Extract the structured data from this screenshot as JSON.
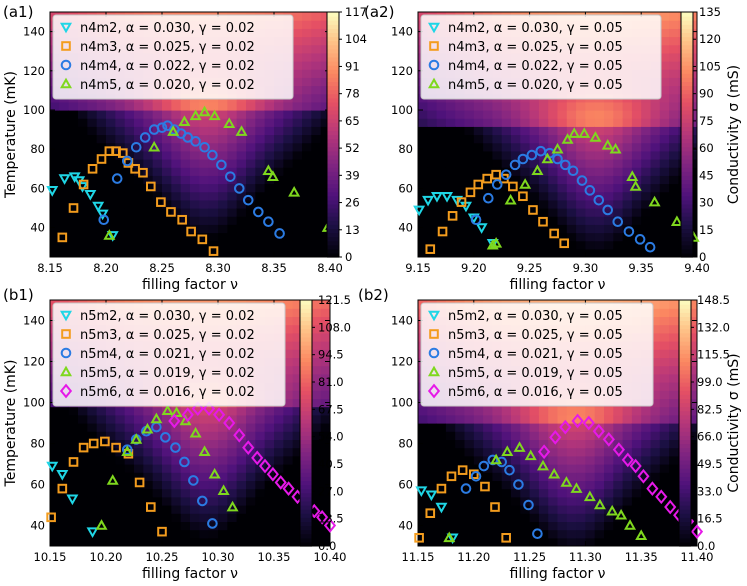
{
  "chart_data": [
    {
      "panel_label": "(a1)",
      "type": "scatter",
      "background": "heatmap",
      "xlabel": "filling factor ν",
      "ylabel": "Temperature (mK)",
      "xlim": [
        8.15,
        8.4
      ],
      "ylim": [
        25,
        150
      ],
      "xticks": [
        "8.15",
        "8.20",
        "8.25",
        "8.30",
        "8.35",
        "8.40"
      ],
      "yticks": [
        "40",
        "60",
        "80",
        "100",
        "120",
        "140"
      ],
      "heat_peak": {
        "x": 8.29,
        "y": 100
      },
      "colorbar": {
        "label": "",
        "min": 0,
        "max": 117,
        "ticks": [
          "0",
          "13",
          "26",
          "39",
          "52",
          "65",
          "78",
          "91",
          "104",
          "117"
        ]
      },
      "series": [
        {
          "name": "n4m2, α = 0.030, γ = 0.02",
          "marker": "triangle-down",
          "color": "#1fd6e6",
          "x": [
            8.152,
            8.163,
            8.172,
            8.176,
            8.179,
            8.186,
            8.193,
            8.197,
            8.206
          ],
          "y": [
            59,
            65,
            66,
            64,
            61,
            57,
            51,
            47,
            36
          ]
        },
        {
          "name": "n4m3, α = 0.025, γ = 0.02",
          "marker": "square",
          "color": "#f39c1e",
          "x": [
            8.161,
            8.171,
            8.18,
            8.188,
            8.196,
            8.203,
            8.209,
            8.215,
            8.22,
            8.226,
            8.233,
            8.24,
            8.249,
            8.258,
            8.268,
            8.276,
            8.286,
            8.296
          ],
          "y": [
            35,
            50,
            62,
            70,
            75,
            79,
            79,
            78,
            73,
            70,
            68,
            61,
            53,
            48,
            44,
            38,
            34,
            28
          ]
        },
        {
          "name": "n4m4, α = 0.022, γ = 0.02",
          "marker": "circle",
          "color": "#2b7be3",
          "x": [
            8.198,
            8.21,
            8.219,
            8.227,
            8.235,
            8.243,
            8.25,
            8.255,
            8.261,
            8.267,
            8.273,
            8.28,
            8.288,
            8.295,
            8.303,
            8.311,
            8.319,
            8.327,
            8.336,
            8.345,
            8.355
          ],
          "y": [
            44,
            65,
            74,
            81,
            86,
            90,
            91,
            92,
            90,
            88,
            86,
            84,
            81,
            77,
            72,
            66,
            60,
            54,
            48,
            43,
            37
          ]
        },
        {
          "name": "n4m5, α = 0.020, γ = 0.02",
          "marker": "triangle-up",
          "color": "#7fd81e",
          "x": [
            8.203,
            8.243,
            8.26,
            8.27,
            8.28,
            8.288,
            8.297,
            8.31,
            8.321,
            8.345,
            8.349,
            8.368,
            8.398
          ],
          "y": [
            36,
            81,
            89,
            94,
            97,
            99,
            97,
            93,
            89,
            69,
            66,
            58,
            40
          ]
        }
      ]
    },
    {
      "panel_label": "(a2)",
      "type": "scatter",
      "background": "heatmap",
      "xlabel": "filling factor ν",
      "ylabel": "",
      "xlim": [
        9.15,
        9.4
      ],
      "ylim": [
        25,
        150
      ],
      "xticks": [
        "9.15",
        "9.20",
        "9.25",
        "9.30",
        "9.35",
        "9.40"
      ],
      "yticks": [
        "40",
        "60",
        "80",
        "100",
        "120",
        "140"
      ],
      "heat_peak": {
        "x": 9.31,
        "y": 93
      },
      "colorbar": {
        "label": "Conductivity σ (mS)",
        "min": 0,
        "max": 135,
        "ticks": [
          "0",
          "15",
          "30",
          "45",
          "60",
          "75",
          "90",
          "105",
          "120",
          "135"
        ]
      },
      "series": [
        {
          "name": "n4m2, α = 0.030, γ = 0.05",
          "marker": "triangle-down",
          "color": "#1fd6e6",
          "x": [
            9.151,
            9.159,
            9.167,
            9.176,
            9.185,
            9.193,
            9.2,
            9.207,
            9.217
          ],
          "y": [
            49,
            54,
            56,
            56,
            54,
            51,
            45,
            40,
            32
          ]
        },
        {
          "name": "n4m3, α = 0.025, γ = 0.05",
          "marker": "square",
          "color": "#f39c1e",
          "x": [
            9.161,
            9.172,
            9.181,
            9.189,
            9.197,
            9.204,
            9.212,
            9.22,
            9.227,
            9.235,
            9.244,
            9.253,
            9.262,
            9.272,
            9.281
          ],
          "y": [
            29,
            38,
            46,
            53,
            58,
            62,
            65,
            67,
            65,
            61,
            56,
            49,
            43,
            37,
            32
          ]
        },
        {
          "name": "n4m4, α = 0.022, γ = 0.05",
          "marker": "circle",
          "color": "#2b7be3",
          "x": [
            9.202,
            9.213,
            9.221,
            9.229,
            9.237,
            9.244,
            9.252,
            9.26,
            9.268,
            9.275,
            9.282,
            9.289,
            9.297,
            9.304,
            9.312,
            9.32,
            9.329,
            9.339,
            9.349,
            9.358
          ],
          "y": [
            44,
            55,
            62,
            67,
            72,
            75,
            77,
            79,
            78,
            75,
            72,
            69,
            64,
            59,
            54,
            49,
            43,
            38,
            34,
            30
          ]
        },
        {
          "name": "n4m5, α = 0.020, γ = 0.05",
          "marker": "triangle-up",
          "color": "#7fd81e",
          "x": [
            9.217,
            9.22,
            9.233,
            9.246,
            9.257,
            9.266,
            9.275,
            9.284,
            9.29,
            9.299,
            9.309,
            9.32,
            9.327,
            9.342,
            9.345,
            9.362,
            9.382,
            9.397
          ],
          "y": [
            31,
            32,
            54,
            62,
            69,
            75,
            80,
            85,
            88,
            88,
            86,
            82,
            80,
            66,
            61,
            53,
            43,
            35
          ]
        }
      ]
    },
    {
      "panel_label": "(b1)",
      "type": "scatter",
      "background": "heatmap",
      "xlabel": "filling factor ν",
      "ylabel": "Temperature (mK)",
      "xlim": [
        10.15,
        10.4
      ],
      "ylim": [
        30,
        150
      ],
      "xticks": [
        "10.15",
        "10.20",
        "10.25",
        "10.30",
        "10.35",
        "10.40"
      ],
      "yticks": [
        "40",
        "60",
        "80",
        "100",
        "120",
        "140"
      ],
      "heat_peak": {
        "x": 10.29,
        "y": 97
      },
      "colorbar": {
        "label": "",
        "min": 0,
        "max": 121.5,
        "ticks": [
          "0.0",
          "13.5",
          "27.0",
          "40.5",
          "54.0",
          "67.5",
          "81.0",
          "94.5",
          "108.0",
          "121.5"
        ]
      },
      "series": [
        {
          "name": "n5m2, α = 0.030, γ = 0.02",
          "marker": "triangle-down",
          "color": "#1fd6e6",
          "x": [
            10.152,
            10.161,
            10.17,
            10.188
          ],
          "y": [
            69,
            65,
            53,
            37
          ]
        },
        {
          "name": "n5m3, α = 0.025, γ = 0.02",
          "marker": "square",
          "color": "#f39c1e",
          "x": [
            10.151,
            10.161,
            10.171,
            10.18,
            10.189,
            10.199,
            10.209,
            10.22,
            10.23,
            10.24,
            10.25
          ],
          "y": [
            44,
            58,
            71,
            78,
            80,
            81,
            78,
            75,
            61,
            49,
            37
          ]
        },
        {
          "name": "n5m4, α = 0.021, γ = 0.02",
          "marker": "circle",
          "color": "#2b7be3",
          "x": [
            10.219,
            10.227,
            10.236,
            10.245,
            10.253,
            10.262,
            10.27,
            10.278,
            10.286,
            10.295
          ],
          "y": [
            77,
            82,
            86,
            88,
            83,
            78,
            71,
            62,
            52,
            41
          ]
        },
        {
          "name": "n5m5, α = 0.019, γ = 0.02",
          "marker": "triangle-up",
          "color": "#7fd81e",
          "x": [
            10.196,
            10.206,
            10.219,
            10.227,
            10.237,
            10.245,
            10.255,
            10.263,
            10.271,
            10.28,
            10.288,
            10.297,
            10.305,
            10.313
          ],
          "y": [
            40,
            62,
            76,
            82,
            87,
            92,
            96,
            95,
            91,
            85,
            76,
            65,
            57,
            49
          ]
        },
        {
          "name": "n5m6, α = 0.016, γ = 0.02",
          "marker": "diamond",
          "color": "#e619e8",
          "x": [
            10.261,
            10.273,
            10.282,
            10.292,
            10.301,
            10.31,
            10.319,
            10.327,
            10.335,
            10.342,
            10.349,
            10.356,
            10.363,
            10.371,
            10.379,
            10.386,
            10.393,
            10.4
          ],
          "y": [
            91,
            94,
            97,
            97,
            94,
            90,
            84,
            78,
            73,
            69,
            65,
            61,
            58,
            54,
            51,
            47,
            44,
            40
          ]
        }
      ]
    },
    {
      "panel_label": "(b2)",
      "type": "scatter",
      "background": "heatmap",
      "xlabel": "filling factor ν",
      "ylabel": "",
      "xlim": [
        11.15,
        11.4
      ],
      "ylim": [
        30,
        150
      ],
      "xticks": [
        "11.15",
        "11.20",
        "11.25",
        "11.30",
        "11.35",
        "11.40"
      ],
      "yticks": [
        "40",
        "60",
        "80",
        "100",
        "120",
        "140"
      ],
      "heat_peak": {
        "x": 11.29,
        "y": 90
      },
      "colorbar": {
        "label": "Conductivity σ (mS)",
        "min": 0,
        "max": 148.5,
        "ticks": [
          "0.0",
          "16.5",
          "33.0",
          "49.5",
          "66.0",
          "82.5",
          "99.0",
          "115.5",
          "132.0",
          "148.5"
        ]
      },
      "series": [
        {
          "name": "n5m2, α = 0.030, γ = 0.05",
          "marker": "triangle-down",
          "color": "#1fd6e6",
          "x": [
            11.153,
            11.162,
            11.171,
            11.181
          ],
          "y": [
            57,
            55,
            49,
            34
          ]
        },
        {
          "name": "n5m3, α = 0.025, γ = 0.05",
          "marker": "square",
          "color": "#f39c1e",
          "x": [
            11.151,
            11.161,
            11.171,
            11.18,
            11.19,
            11.2,
            11.21,
            11.219,
            11.229
          ],
          "y": [
            34,
            46,
            58,
            64,
            67,
            65,
            59,
            49,
            34
          ]
        },
        {
          "name": "n5m4, α = 0.021, γ = 0.05",
          "marker": "circle",
          "color": "#2b7be3",
          "x": [
            11.193,
            11.202,
            11.209,
            11.217,
            11.225,
            11.232,
            11.24,
            11.249,
            11.257
          ],
          "y": [
            58,
            64,
            69,
            72,
            71,
            67,
            60,
            50,
            36
          ]
        },
        {
          "name": "n5m5, α = 0.019, γ = 0.05",
          "marker": "triangle-up",
          "color": "#7fd81e",
          "x": [
            11.178,
            11.22,
            11.23,
            11.241,
            11.251,
            11.262,
            11.272,
            11.283,
            11.292,
            11.304,
            11.313,
            11.324,
            11.332,
            11.34,
            11.35
          ],
          "y": [
            34,
            72,
            76,
            78,
            74,
            69,
            65,
            61,
            58,
            54,
            50,
            47,
            45,
            40,
            35
          ]
        },
        {
          "name": "n5m6, α = 0.016, γ = 0.05",
          "marker": "diamond",
          "color": "#e619e8",
          "x": [
            11.263,
            11.273,
            11.282,
            11.293,
            11.303,
            11.312,
            11.321,
            11.33,
            11.338,
            11.345,
            11.352,
            11.36,
            11.368,
            11.376,
            11.384,
            11.392,
            11.4
          ],
          "y": [
            76,
            83,
            88,
            91,
            90,
            86,
            82,
            77,
            72,
            69,
            64,
            58,
            54,
            49,
            45,
            42,
            37
          ]
        }
      ]
    }
  ]
}
